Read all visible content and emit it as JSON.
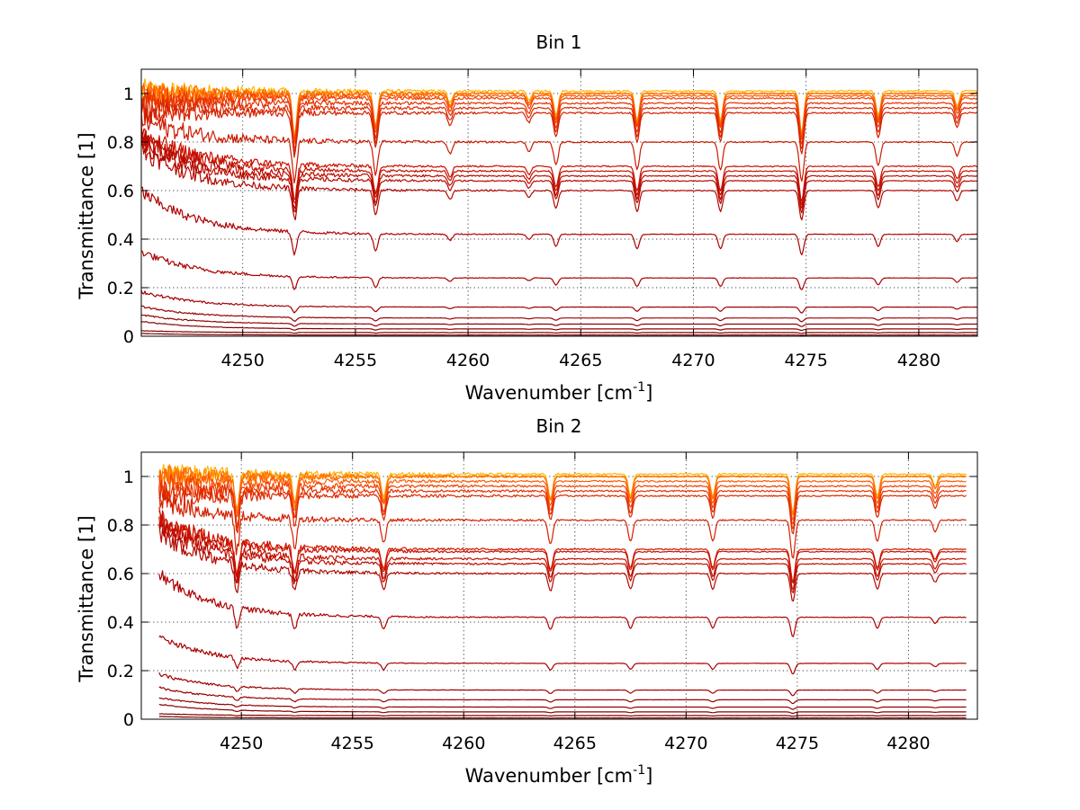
{
  "chart_data": [
    {
      "type": "line",
      "title": "Bin 1",
      "xlabel": "Wavenumber [cm",
      "xlabel_superscript": "-1",
      "xlabel_suffix": "]",
      "ylabel": "Transmittance [1]",
      "xlim": [
        4245.5,
        4282.6
      ],
      "ylim": [
        0,
        1.1
      ],
      "grid": true,
      "xticks": [
        4250,
        4255,
        4260,
        4265,
        4270,
        4275,
        4280
      ],
      "xtick_labels": [
        "4250",
        "4255",
        "4260",
        "4265",
        "4270",
        "4275",
        "4280"
      ],
      "yticks": [
        0,
        0.2,
        0.4,
        0.6,
        0.8,
        1
      ],
      "ytick_labels": [
        "0",
        "0.2",
        "0.4",
        "0.6",
        "0.8",
        "1"
      ],
      "x_start": 4245.5,
      "x_end": 4282.6,
      "absorption_lines": [
        {
          "center": 4252.3,
          "depth": 0.18
        },
        {
          "center": 4255.9,
          "depth": 0.14
        },
        {
          "center": 4259.2,
          "depth": 0.05
        },
        {
          "center": 4262.7,
          "depth": 0.04
        },
        {
          "center": 4263.9,
          "depth": 0.1
        },
        {
          "center": 4267.5,
          "depth": 0.12
        },
        {
          "center": 4271.2,
          "depth": 0.12
        },
        {
          "center": 4274.8,
          "depth": 0.17
        },
        {
          "center": 4278.2,
          "depth": 0.1
        },
        {
          "center": 4281.7,
          "depth": 0.06
        }
      ],
      "series": [
        {
          "level": 1.01,
          "color": "#ffb300"
        },
        {
          "level": 1.0,
          "color": "#ff8c00"
        },
        {
          "level": 1.0,
          "color": "#ff7000"
        },
        {
          "level": 0.99,
          "color": "#ff5a00"
        },
        {
          "level": 0.98,
          "color": "#f04000"
        },
        {
          "level": 0.96,
          "color": "#e63000"
        },
        {
          "level": 0.94,
          "color": "#dd2a00"
        },
        {
          "level": 0.92,
          "color": "#d42000"
        },
        {
          "level": 0.8,
          "color": "#cc1a00"
        },
        {
          "level": 0.7,
          "color": "#cc1000"
        },
        {
          "level": 0.68,
          "color": "#c41000"
        },
        {
          "level": 0.66,
          "color": "#bb0d00"
        },
        {
          "level": 0.64,
          "color": "#b80a00"
        },
        {
          "level": 0.6,
          "color": "#b30800"
        },
        {
          "level": 0.42,
          "color": "#b00000"
        },
        {
          "level": 0.24,
          "color": "#aa0000"
        },
        {
          "level": 0.12,
          "color": "#a00000"
        },
        {
          "level": 0.075,
          "color": "#990000"
        },
        {
          "level": 0.05,
          "color": "#920000"
        },
        {
          "level": 0.03,
          "color": "#880000"
        },
        {
          "level": 0.015,
          "color": "#800000"
        },
        {
          "level": 0.005,
          "color": "#780000"
        }
      ]
    },
    {
      "type": "line",
      "title": "Bin 2",
      "xlabel": "Wavenumber [cm",
      "xlabel_superscript": "-1",
      "xlabel_suffix": "]",
      "ylabel": "Transmittance [1]",
      "xlim": [
        4245.5,
        4283.1
      ],
      "ylim": [
        0,
        1.1
      ],
      "grid": true,
      "xticks": [
        4250,
        4255,
        4260,
        4265,
        4270,
        4275,
        4280
      ],
      "xtick_labels": [
        "4250",
        "4255",
        "4260",
        "4265",
        "4270",
        "4275",
        "4280"
      ],
      "yticks": [
        0,
        0.2,
        0.4,
        0.6,
        0.8,
        1
      ],
      "ytick_labels": [
        "0",
        "0.2",
        "0.4",
        "0.6",
        "0.8",
        "1"
      ],
      "x_start": 4246.3,
      "x_end": 4282.6,
      "absorption_lines": [
        {
          "center": 4249.8,
          "depth": 0.15
        },
        {
          "center": 4252.4,
          "depth": 0.12
        },
        {
          "center": 4256.4,
          "depth": 0.1
        },
        {
          "center": 4263.9,
          "depth": 0.1
        },
        {
          "center": 4267.5,
          "depth": 0.09
        },
        {
          "center": 4271.2,
          "depth": 0.09
        },
        {
          "center": 4274.8,
          "depth": 0.16
        },
        {
          "center": 4278.6,
          "depth": 0.09
        },
        {
          "center": 4281.2,
          "depth": 0.05
        }
      ],
      "series": [
        {
          "level": 1.01,
          "color": "#ffb300"
        },
        {
          "level": 1.0,
          "color": "#ff8c00"
        },
        {
          "level": 1.0,
          "color": "#ff7000"
        },
        {
          "level": 0.98,
          "color": "#ff5a00"
        },
        {
          "level": 0.96,
          "color": "#f04000"
        },
        {
          "level": 0.94,
          "color": "#e63000"
        },
        {
          "level": 0.92,
          "color": "#dd2a00"
        },
        {
          "level": 0.82,
          "color": "#d42000"
        },
        {
          "level": 0.7,
          "color": "#cc1a00"
        },
        {
          "level": 0.69,
          "color": "#cc1000"
        },
        {
          "level": 0.66,
          "color": "#c41000"
        },
        {
          "level": 0.64,
          "color": "#bb0d00"
        },
        {
          "level": 0.6,
          "color": "#b30800"
        },
        {
          "level": 0.42,
          "color": "#b00000"
        },
        {
          "level": 0.23,
          "color": "#aa0000"
        },
        {
          "level": 0.12,
          "color": "#a00000"
        },
        {
          "level": 0.08,
          "color": "#990000"
        },
        {
          "level": 0.05,
          "color": "#920000"
        },
        {
          "level": 0.03,
          "color": "#880000"
        },
        {
          "level": 0.015,
          "color": "#800000"
        },
        {
          "level": 0.005,
          "color": "#780000"
        }
      ]
    }
  ]
}
